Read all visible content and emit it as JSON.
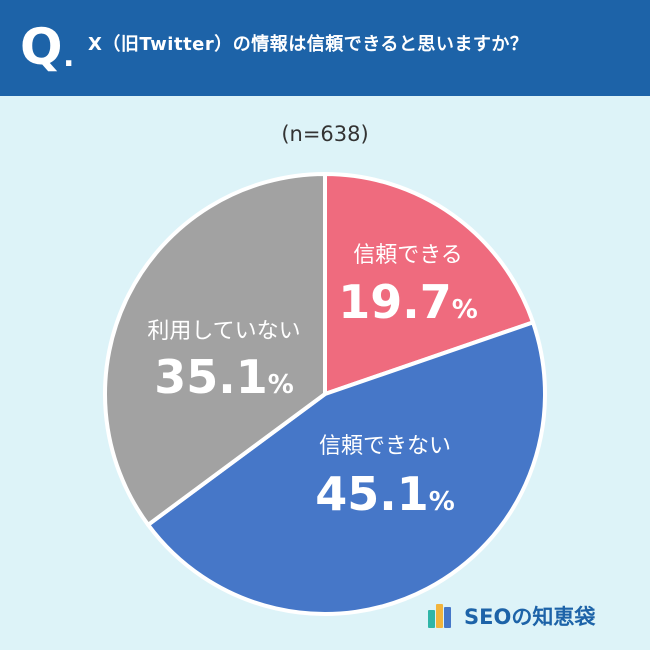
{
  "header": {
    "q_mark": "Q",
    "q_dot": ".",
    "question": "X（旧Twitter）の情報は信頼できると思いますか？"
  },
  "sample_size": "(n=638)",
  "brand": {
    "name": "SEOの知恵袋"
  },
  "colors": {
    "header_bg": "#1d63a8",
    "background": "#ddf3f8",
    "trust": "#ef6b7e",
    "distrust": "#4677c8",
    "unused": "#a2a2a2"
  },
  "chart_data": {
    "type": "pie",
    "title": "X（旧Twitter）の情報は信頼できると思いますか？",
    "subtitle": "(n=638)",
    "unit": "%",
    "start_angle_deg": 0,
    "direction": "clockwise",
    "slices": [
      {
        "label": "信頼できる",
        "value": 19.7,
        "value_text": "19.7",
        "color": "#ef6b7e"
      },
      {
        "label": "信頼できない",
        "value": 45.1,
        "value_text": "45.1",
        "color": "#4677c8"
      },
      {
        "label": "利用していない",
        "value": 35.1,
        "value_text": "35.1",
        "color": "#a2a2a2"
      }
    ]
  }
}
